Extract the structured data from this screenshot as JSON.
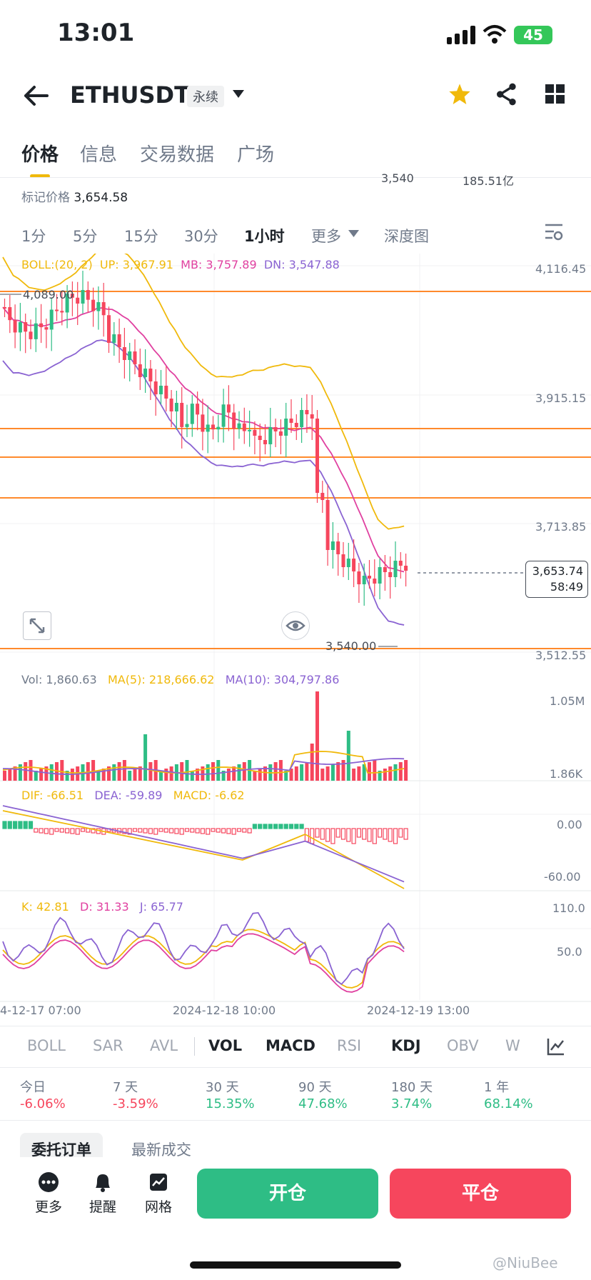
{
  "status": {
    "time": "13:01",
    "battery": "45"
  },
  "header": {
    "symbol": "ETHUSDT",
    "contract": "永续"
  },
  "tabs": [
    "价格",
    "信息",
    "交易数据",
    "广场"
  ],
  "top_partial": {
    "price_right": "3,540",
    "vol_right": "185.51亿"
  },
  "mark_price": {
    "label": "标记价格",
    "value": "3,654.58"
  },
  "intervals": [
    "1分",
    "5分",
    "15分",
    "30分",
    "1小时",
    "更多",
    "深度图"
  ],
  "boll": {
    "label": "BOLL:(20, 2)",
    "up": "UP: 3,967.91",
    "mb": "MB: 3,757.89",
    "dn": "DN: 3,547.88"
  },
  "price_axis": [
    "4,116.45",
    "3,915.15",
    "3,713.85",
    "3,512.55"
  ],
  "annotations": {
    "high": "4,089.00",
    "low": "3,540.00"
  },
  "current_price": {
    "price": "3,653.74",
    "countdown": "58:49"
  },
  "volume": {
    "vol": "Vol: 1,860.63",
    "ma5": "MA(5): 218,666.62",
    "ma10": "MA(10): 304,797.86",
    "axis_top": "1.05M",
    "axis_bottom": "1.86K"
  },
  "macd": {
    "dif": "DIF: -66.51",
    "dea": "DEA: -59.89",
    "macd": "MACD: -6.62",
    "axis_top": "0.00",
    "axis_bottom": "-60.00"
  },
  "kdj": {
    "k": "K: 42.81",
    "d": "D: 31.33",
    "j": "J: 65.77",
    "axis_top": "110.0",
    "axis_mid": "50.0"
  },
  "time_axis": [
    "4-12-17 07:00",
    "2024-12-18 10:00",
    "2024-12-19 13:00"
  ],
  "indicators": [
    "BOLL",
    "SAR",
    "AVL",
    "VOL",
    "MACD",
    "RSI",
    "KDJ",
    "OBV",
    "W"
  ],
  "performance": [
    {
      "label": "今日",
      "value": "-6.06%"
    },
    {
      "label": "7 天",
      "value": "-3.59%"
    },
    {
      "label": "30 天",
      "value": "15.35%"
    },
    {
      "label": "90 天",
      "value": "47.68%"
    },
    {
      "label": "180 天",
      "value": "3.74%"
    },
    {
      "label": "1 年",
      "value": "68.14%"
    }
  ],
  "lower_tabs": [
    "委托订单",
    "最新成交"
  ],
  "bottom": {
    "more": "更多",
    "alert": "提醒",
    "grid": "网格",
    "open": "开仓",
    "close": "平仓"
  },
  "watermark": "@NiuBee",
  "colors": {
    "up": "#2ebd85",
    "down": "#f6465d",
    "accent": "#f0b90b",
    "hline": "#ff8a2c"
  }
}
